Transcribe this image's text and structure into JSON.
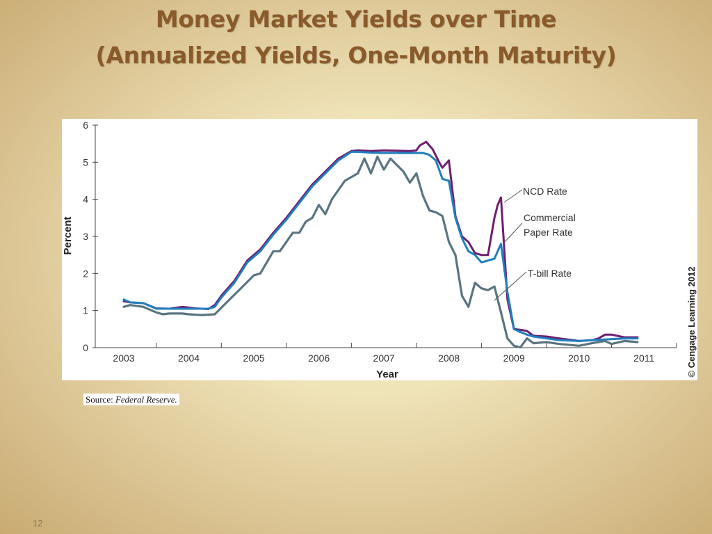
{
  "slide": {
    "title_line1": "Money Market Yields over Time",
    "title_line2": "(Annualized Yields, One-Month Maturity)",
    "source_label": "Source:",
    "source_publisher": "Federal Reserve.",
    "page_number": "12"
  },
  "chart_data": {
    "type": "line",
    "title": "",
    "xlabel": "Year",
    "ylabel": "Percent",
    "xlim": [
      2003,
      2011.5
    ],
    "ylim": [
      0,
      6
    ],
    "x_ticks": [
      2003,
      2004,
      2005,
      2006,
      2007,
      2008,
      2009,
      2010,
      2011
    ],
    "y_ticks": [
      0,
      1,
      2,
      3,
      4,
      5,
      6
    ],
    "grid": false,
    "legend": "annotations",
    "copyright": "© Cengage Learning 2012",
    "series": [
      {
        "name": "NCD Rate",
        "color": "#6e1f6e",
        "x": [
          2003.0,
          2003.1,
          2003.3,
          2003.5,
          2003.7,
          2003.9,
          2004.1,
          2004.3,
          2004.4,
          2004.5,
          2004.7,
          2004.9,
          2005.1,
          2005.3,
          2005.5,
          2005.7,
          2005.9,
          2006.1,
          2006.3,
          2006.5,
          2006.6,
          2006.8,
          2007.0,
          2007.2,
          2007.4,
          2007.5,
          2007.55,
          2007.65,
          2007.75,
          2007.85,
          2007.9,
          2008.0,
          2008.1,
          2008.2,
          2008.3,
          2008.4,
          2008.5,
          2008.6,
          2008.7,
          2008.75,
          2008.8,
          2008.9,
          2009.0,
          2009.1,
          2009.2,
          2009.3,
          2009.5,
          2009.7,
          2010.0,
          2010.2,
          2010.3,
          2010.4,
          2010.5,
          2010.7,
          2010.9
        ],
        "y": [
          1.25,
          1.22,
          1.2,
          1.06,
          1.05,
          1.1,
          1.06,
          1.04,
          1.15,
          1.4,
          1.8,
          2.35,
          2.65,
          3.1,
          3.5,
          3.95,
          4.4,
          4.75,
          5.1,
          5.3,
          5.32,
          5.3,
          5.32,
          5.31,
          5.3,
          5.32,
          5.45,
          5.55,
          5.35,
          5.0,
          4.85,
          5.05,
          3.55,
          3.0,
          2.85,
          2.55,
          2.5,
          2.5,
          3.5,
          3.85,
          4.05,
          1.3,
          0.5,
          0.48,
          0.45,
          0.32,
          0.3,
          0.25,
          0.18,
          0.2,
          0.25,
          0.35,
          0.35,
          0.28,
          0.28
        ]
      },
      {
        "name": "Commercial Paper Rate",
        "color": "#1f7fbf",
        "x": [
          2003.0,
          2003.1,
          2003.3,
          2003.5,
          2003.7,
          2003.9,
          2004.1,
          2004.3,
          2004.4,
          2004.5,
          2004.7,
          2004.9,
          2005.1,
          2005.3,
          2005.5,
          2005.7,
          2005.9,
          2006.1,
          2006.3,
          2006.5,
          2006.6,
          2006.8,
          2007.0,
          2007.2,
          2007.4,
          2007.5,
          2007.6,
          2007.7,
          2007.8,
          2007.9,
          2008.0,
          2008.1,
          2008.2,
          2008.3,
          2008.4,
          2008.5,
          2008.6,
          2008.7,
          2008.8,
          2008.9,
          2009.0,
          2009.1,
          2009.2,
          2009.3,
          2009.5,
          2009.7,
          2010.0,
          2010.2,
          2010.4,
          2010.7,
          2010.9
        ],
        "y": [
          1.3,
          1.22,
          1.2,
          1.05,
          1.05,
          1.05,
          1.05,
          1.05,
          1.1,
          1.35,
          1.75,
          2.3,
          2.6,
          3.05,
          3.45,
          3.9,
          4.35,
          4.7,
          5.05,
          5.28,
          5.28,
          5.26,
          5.25,
          5.25,
          5.25,
          5.25,
          5.25,
          5.2,
          5.05,
          4.55,
          4.5,
          3.5,
          2.95,
          2.6,
          2.5,
          2.3,
          2.35,
          2.4,
          2.8,
          1.5,
          0.5,
          0.42,
          0.35,
          0.3,
          0.25,
          0.2,
          0.18,
          0.2,
          0.22,
          0.25,
          0.25
        ]
      },
      {
        "name": "T-bill Rate",
        "color": "#5a7480",
        "x": [
          2003.0,
          2003.1,
          2003.3,
          2003.5,
          2003.6,
          2003.7,
          2003.9,
          2004.0,
          2004.2,
          2004.4,
          2004.6,
          2004.8,
          2005.0,
          2005.1,
          2005.3,
          2005.4,
          2005.6,
          2005.7,
          2005.8,
          2005.9,
          2006.0,
          2006.1,
          2006.2,
          2006.4,
          2006.55,
          2006.6,
          2006.7,
          2006.8,
          2006.9,
          2007.0,
          2007.1,
          2007.3,
          2007.4,
          2007.5,
          2007.6,
          2007.7,
          2007.8,
          2007.9,
          2008.0,
          2008.1,
          2008.2,
          2008.3,
          2008.4,
          2008.5,
          2008.6,
          2008.7,
          2008.8,
          2008.9,
          2009.0,
          2009.1,
          2009.2,
          2009.3,
          2009.5,
          2009.7,
          2010.0,
          2010.2,
          2010.4,
          2010.5,
          2010.7,
          2010.9
        ],
        "y": [
          1.1,
          1.15,
          1.1,
          0.95,
          0.9,
          0.92,
          0.92,
          0.9,
          0.88,
          0.9,
          1.25,
          1.6,
          1.95,
          2.0,
          2.6,
          2.6,
          3.1,
          3.1,
          3.4,
          3.5,
          3.85,
          3.6,
          4.0,
          4.5,
          4.65,
          4.7,
          5.1,
          4.7,
          5.15,
          4.8,
          5.1,
          4.75,
          4.45,
          4.7,
          4.1,
          3.7,
          3.65,
          3.55,
          2.85,
          2.5,
          1.4,
          1.1,
          1.75,
          1.6,
          1.55,
          1.65,
          0.95,
          0.25,
          0.05,
          0.01,
          0.25,
          0.12,
          0.15,
          0.1,
          0.05,
          0.12,
          0.18,
          0.1,
          0.18,
          0.15
        ]
      }
    ],
    "annotations": {
      "ncd": "NCD Rate",
      "cp_line1": "Commercial",
      "cp_line2": "Paper Rate",
      "tbill": "T-bill Rate"
    }
  }
}
